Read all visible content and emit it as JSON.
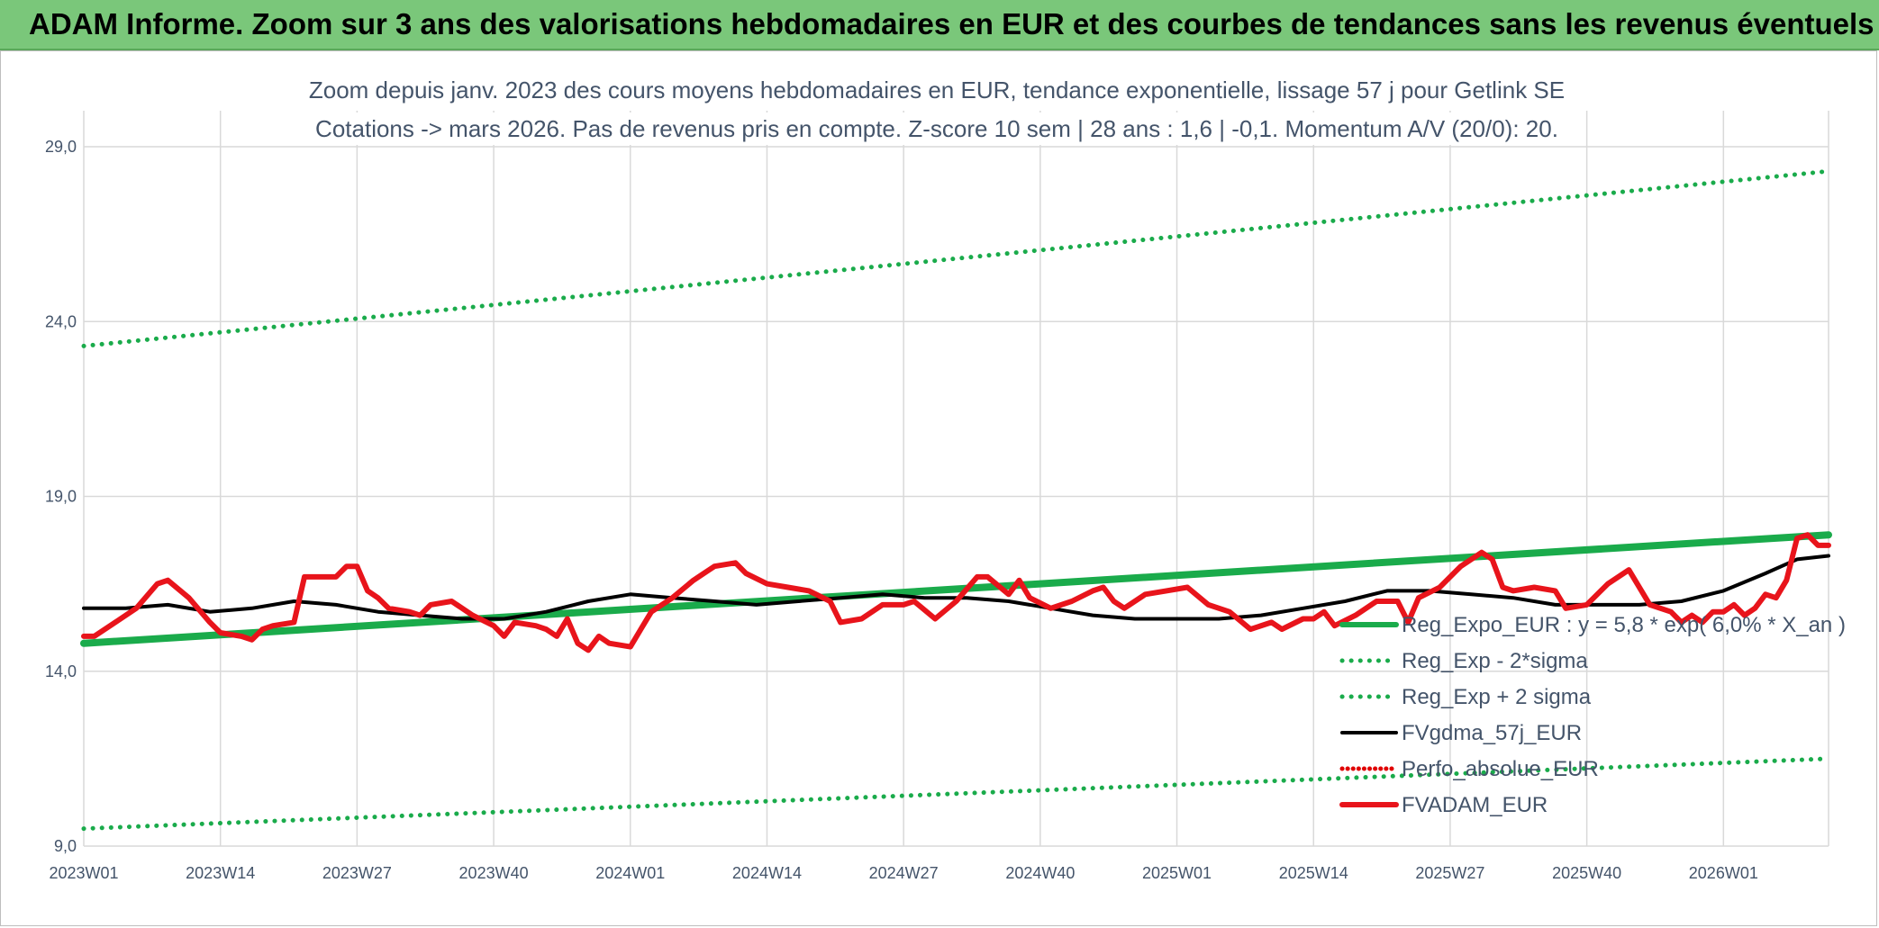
{
  "banner": {
    "title": "ADAM Informe. Zoom sur 3 ans des valorisations hebdomadaires en EUR et des courbes de tendances sans les revenus éventuels"
  },
  "colors": {
    "banner": "#7ac77a",
    "trend": "#1aab4b",
    "sigma": "#1aab4b",
    "smooth": "#000000",
    "perfo": "#e00000",
    "price": "#e8141b",
    "text": "#44546a",
    "grid": "#d9d9d9"
  },
  "chart_data": {
    "type": "line",
    "title_lines": [
      "Zoom depuis janv. 2023 des cours moyens hebdomadaires en EUR, tendance exponentielle, lissage 57 j pour Getlink SE",
      "Cotations -> mars 2026. Pas de revenus pris en compte. Z-score 10 sem | 28 ans : 1,6 | -0,1. Momentum A/V (20/0): 20."
    ],
    "x_ticks": [
      "2023W01",
      "2023W14",
      "2023W27",
      "2023W40",
      "2024W01",
      "2024W14",
      "2024W27",
      "2024W40",
      "2025W01",
      "2025W14",
      "2025W27",
      "2025W40",
      "2026W01"
    ],
    "x_range": [
      "2023W01",
      "2026W11"
    ],
    "y_ticks": [
      "9,0",
      "14,0",
      "19,0",
      "24,0",
      "29,0"
    ],
    "ylim": [
      9,
      29
    ],
    "grid": true,
    "legend_position": "bottom-right",
    "series": [
      {
        "name": "Reg_Expo_EUR : y = 5,8 * exp( 6,0% * X_an )",
        "style": "solid-thick",
        "color": "#1aab4b",
        "points": [
          [
            "2023W01",
            14.8
          ],
          [
            "2026W11",
            17.9
          ]
        ]
      },
      {
        "name": "Reg_Exp - 2*sigma",
        "style": "dotted",
        "color": "#1aab4b",
        "points": [
          [
            "2023W01",
            9.5
          ],
          [
            "2026W11",
            11.5
          ]
        ]
      },
      {
        "name": "Reg_Exp + 2 sigma",
        "style": "dotted",
        "color": "#1aab4b",
        "points": [
          [
            "2023W01",
            23.3
          ],
          [
            "2026W11",
            28.3
          ]
        ]
      },
      {
        "name": "FVgdma_57j_EUR",
        "style": "solid",
        "color": "#000000",
        "points": [
          [
            "2023W01",
            15.8
          ],
          [
            "2023W05",
            15.8
          ],
          [
            "2023W09",
            15.9
          ],
          [
            "2023W13",
            15.7
          ],
          [
            "2023W17",
            15.8
          ],
          [
            "2023W21",
            16.0
          ],
          [
            "2023W25",
            15.9
          ],
          [
            "2023W29",
            15.7
          ],
          [
            "2023W33",
            15.6
          ],
          [
            "2023W37",
            15.5
          ],
          [
            "2023W41",
            15.5
          ],
          [
            "2023W45",
            15.7
          ],
          [
            "2023W49",
            16.0
          ],
          [
            "2024W01",
            16.2
          ],
          [
            "2024W05",
            16.1
          ],
          [
            "2024W09",
            16.0
          ],
          [
            "2024W13",
            15.9
          ],
          [
            "2024W17",
            16.0
          ],
          [
            "2024W21",
            16.1
          ],
          [
            "2024W25",
            16.2
          ],
          [
            "2024W29",
            16.1
          ],
          [
            "2024W33",
            16.1
          ],
          [
            "2024W37",
            16.0
          ],
          [
            "2024W41",
            15.8
          ],
          [
            "2024W45",
            15.6
          ],
          [
            "2024W49",
            15.5
          ],
          [
            "2025W01",
            15.5
          ],
          [
            "2025W05",
            15.5
          ],
          [
            "2025W09",
            15.6
          ],
          [
            "2025W13",
            15.8
          ],
          [
            "2025W17",
            16.0
          ],
          [
            "2025W21",
            16.3
          ],
          [
            "2025W25",
            16.3
          ],
          [
            "2025W29",
            16.2
          ],
          [
            "2025W33",
            16.1
          ],
          [
            "2025W37",
            15.9
          ],
          [
            "2025W41",
            15.9
          ],
          [
            "2025W45",
            15.9
          ],
          [
            "2025W49",
            16.0
          ],
          [
            "2026W01",
            16.3
          ],
          [
            "2026W05",
            16.8
          ],
          [
            "2026W08",
            17.2
          ],
          [
            "2026W11",
            17.3
          ]
        ]
      },
      {
        "name": "Perfo_absolue_EUR",
        "style": "dotted",
        "color": "#e00000",
        "points": []
      },
      {
        "name": "FVADAM_EUR",
        "style": "solid-thick",
        "color": "#e8141b",
        "points": [
          [
            "2023W01",
            15.0
          ],
          [
            "2023W02",
            15.0
          ],
          [
            "2023W04",
            15.4
          ],
          [
            "2023W06",
            15.8
          ],
          [
            "2023W08",
            16.5
          ],
          [
            "2023W09",
            16.6
          ],
          [
            "2023W11",
            16.1
          ],
          [
            "2023W13",
            15.4
          ],
          [
            "2023W14",
            15.1
          ],
          [
            "2023W16",
            15.0
          ],
          [
            "2023W17",
            14.9
          ],
          [
            "2023W18",
            15.2
          ],
          [
            "2023W19",
            15.3
          ],
          [
            "2023W21",
            15.4
          ],
          [
            "2023W22",
            16.7
          ],
          [
            "2023W24",
            16.7
          ],
          [
            "2023W25",
            16.7
          ],
          [
            "2023W26",
            17.0
          ],
          [
            "2023W27",
            17.0
          ],
          [
            "2023W28",
            16.3
          ],
          [
            "2023W29",
            16.1
          ],
          [
            "2023W30",
            15.8
          ],
          [
            "2023W32",
            15.7
          ],
          [
            "2023W33",
            15.6
          ],
          [
            "2023W34",
            15.9
          ],
          [
            "2023W36",
            16.0
          ],
          [
            "2023W38",
            15.6
          ],
          [
            "2023W40",
            15.3
          ],
          [
            "2023W41",
            15.0
          ],
          [
            "2023W42",
            15.4
          ],
          [
            "2023W44",
            15.3
          ],
          [
            "2023W45",
            15.2
          ],
          [
            "2023W46",
            15.0
          ],
          [
            "2023W47",
            15.5
          ],
          [
            "2023W48",
            14.8
          ],
          [
            "2023W49",
            14.6
          ],
          [
            "2023W50",
            15.0
          ],
          [
            "2023W51",
            14.8
          ],
          [
            "2024W01",
            14.7
          ],
          [
            "2024W02",
            15.2
          ],
          [
            "2024W03",
            15.7
          ],
          [
            "2024W05",
            16.1
          ],
          [
            "2024W07",
            16.6
          ],
          [
            "2024W09",
            17.0
          ],
          [
            "2024W11",
            17.1
          ],
          [
            "2024W12",
            16.8
          ],
          [
            "2024W14",
            16.5
          ],
          [
            "2024W16",
            16.4
          ],
          [
            "2024W18",
            16.3
          ],
          [
            "2024W20",
            16.0
          ],
          [
            "2024W21",
            15.4
          ],
          [
            "2024W23",
            15.5
          ],
          [
            "2024W25",
            15.9
          ],
          [
            "2024W27",
            15.9
          ],
          [
            "2024W28",
            16.0
          ],
          [
            "2024W30",
            15.5
          ],
          [
            "2024W32",
            16.0
          ],
          [
            "2024W34",
            16.7
          ],
          [
            "2024W35",
            16.7
          ],
          [
            "2024W37",
            16.2
          ],
          [
            "2024W38",
            16.6
          ],
          [
            "2024W39",
            16.1
          ],
          [
            "2024W41",
            15.8
          ],
          [
            "2024W43",
            16.0
          ],
          [
            "2024W45",
            16.3
          ],
          [
            "2024W46",
            16.4
          ],
          [
            "2024W47",
            16.0
          ],
          [
            "2024W48",
            15.8
          ],
          [
            "2024W50",
            16.2
          ],
          [
            "2024W52",
            16.3
          ],
          [
            "2025W02",
            16.4
          ],
          [
            "2025W04",
            15.9
          ],
          [
            "2025W06",
            15.7
          ],
          [
            "2025W08",
            15.2
          ],
          [
            "2025W10",
            15.4
          ],
          [
            "2025W11",
            15.2
          ],
          [
            "2025W13",
            15.5
          ],
          [
            "2025W14",
            15.5
          ],
          [
            "2025W15",
            15.7
          ],
          [
            "2025W16",
            15.3
          ],
          [
            "2025W18",
            15.6
          ],
          [
            "2025W20",
            16.0
          ],
          [
            "2025W22",
            16.0
          ],
          [
            "2025W23",
            15.4
          ],
          [
            "2025W24",
            16.1
          ],
          [
            "2025W26",
            16.4
          ],
          [
            "2025W28",
            17.0
          ],
          [
            "2025W30",
            17.4
          ],
          [
            "2025W31",
            17.2
          ],
          [
            "2025W32",
            16.4
          ],
          [
            "2025W33",
            16.3
          ],
          [
            "2025W35",
            16.4
          ],
          [
            "2025W37",
            16.3
          ],
          [
            "2025W38",
            15.8
          ],
          [
            "2025W40",
            15.9
          ],
          [
            "2025W42",
            16.5
          ],
          [
            "2025W44",
            16.9
          ],
          [
            "2025W46",
            15.9
          ],
          [
            "2025W48",
            15.7
          ],
          [
            "2025W49",
            15.4
          ],
          [
            "2025W50",
            15.6
          ],
          [
            "2025W51",
            15.4
          ],
          [
            "2025W52",
            15.7
          ],
          [
            "2026W01",
            15.7
          ],
          [
            "2026W02",
            15.9
          ],
          [
            "2026W03",
            15.6
          ],
          [
            "2026W04",
            15.8
          ],
          [
            "2026W05",
            16.2
          ],
          [
            "2026W06",
            16.1
          ],
          [
            "2026W07",
            16.6
          ],
          [
            "2026W08",
            17.8
          ],
          [
            "2026W09",
            17.9
          ],
          [
            "2026W10",
            17.6
          ],
          [
            "2026W11",
            17.6
          ]
        ]
      }
    ]
  }
}
